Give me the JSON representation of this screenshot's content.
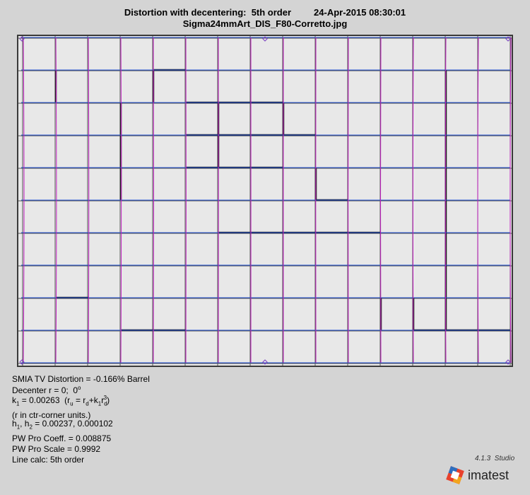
{
  "header": {
    "title": "Distortion with decentering:  5th order",
    "timestamp": "24-Apr-2015 08:30:01",
    "filename": "Sigma24mmArt_DIS_F80-Corretto.jpg"
  },
  "results": {
    "smia": "SMIA TV Distortion = -0.166% Barrel",
    "decenter": [
      "Decenter r = 0;  0",
      "o"
    ],
    "k1": [
      "k",
      "1",
      " = 0.00263  (r",
      "u",
      " = r",
      "d",
      "+k",
      "1",
      "r",
      "d",
      "3",
      ")"
    ],
    "units": "(r in ctr-corner units.)",
    "h": [
      "h",
      "1",
      ", h",
      "2",
      " = 0.00237, 0.000102"
    ],
    "pw_coeff": "PW Pro Coeff. = 0.008875",
    "pw_scale": "PW Pro Scale = 0.9992",
    "line_calc": "Line calc: 5th order"
  },
  "footer": {
    "version": "4.1.3  Studio",
    "brand": "imatest"
  }
}
